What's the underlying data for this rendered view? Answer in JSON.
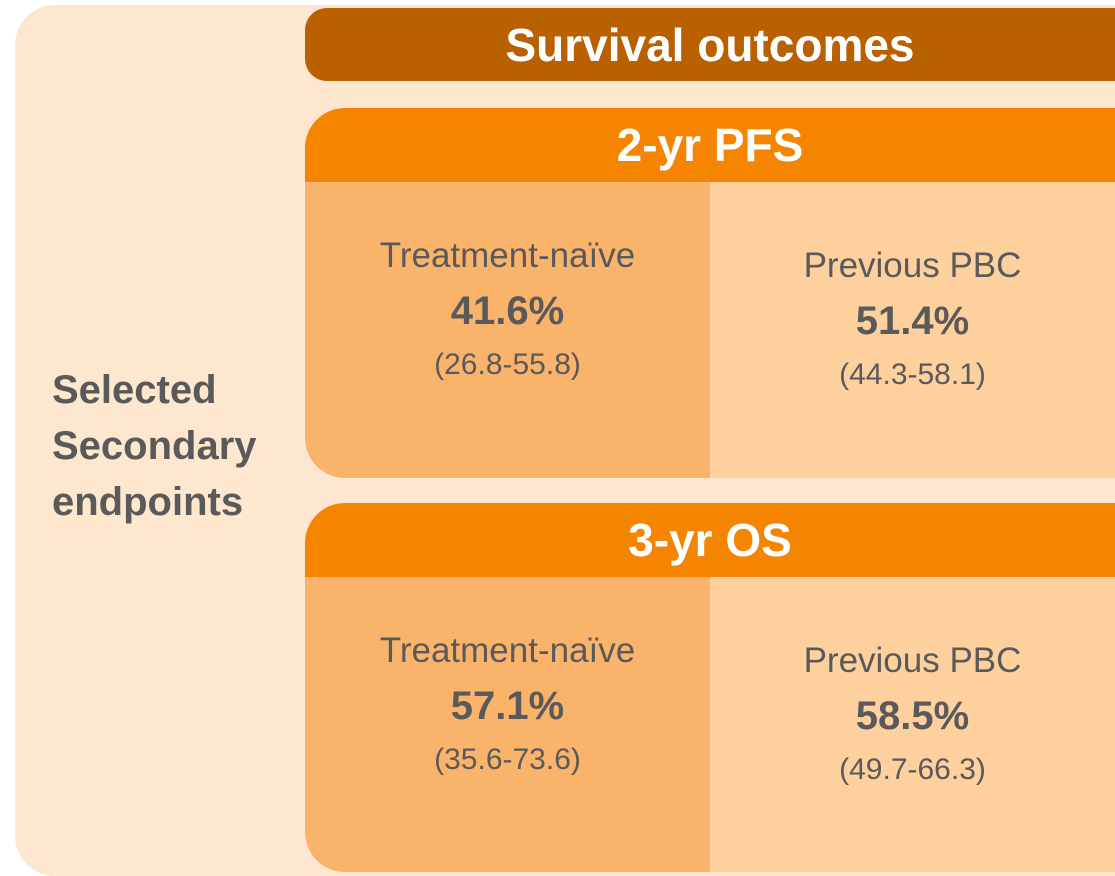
{
  "side_label": "Selected Secondary endpoints",
  "header": {
    "title": "Survival outcomes"
  },
  "panels": [
    {
      "title": "2-yr PFS",
      "groups": [
        {
          "name": "Treatment-naïve",
          "value": "41.6%",
          "ci": "(26.8-55.8)"
        },
        {
          "name": "Previous PBC",
          "value": "51.4%",
          "ci": "(44.3-58.1)"
        }
      ]
    },
    {
      "title": "3-yr OS",
      "groups": [
        {
          "name": "Treatment-naïve",
          "value": "57.1%",
          "ci": "(35.6-73.6)"
        },
        {
          "name": "Previous PBC",
          "value": "58.5%",
          "ci": "(49.7-66.3)"
        }
      ]
    }
  ]
}
